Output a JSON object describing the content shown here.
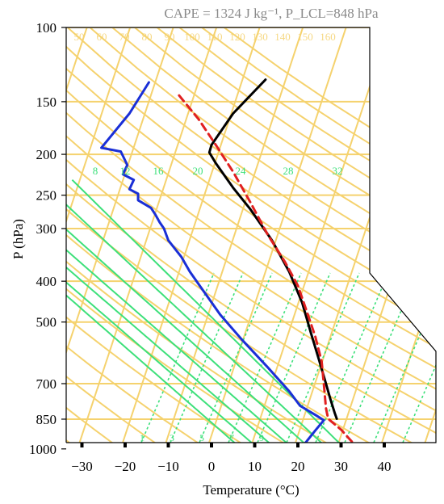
{
  "chart_data": {
    "type": "line",
    "title": "CAPE = 1324 J kg⁻¹,  P_LCL=848 hPa",
    "xlabel": "Temperature (°C)",
    "ylabel": "P (hPa)",
    "xlim": [
      -35,
      50
    ],
    "ylim": [
      1050,
      100
    ],
    "y_scale": "log",
    "x_ticks": [
      "−30",
      "−20",
      "−10",
      "0",
      "10",
      "20",
      "30",
      "40"
    ],
    "y_ticks": [
      "100",
      "150",
      "200",
      "250",
      "300",
      "400",
      "500",
      "700",
      "850",
      "1000"
    ],
    "mixing_ratio_labels": [
      "8",
      "12",
      "16",
      "20",
      "24",
      "28",
      "32"
    ],
    "dry_adiabat_labels": [
      "50",
      "60",
      "70",
      "80",
      "90",
      "100",
      "110",
      "120",
      "130",
      "140",
      "150",
      "160"
    ],
    "small_mixing_ratio_labels": [
      "1",
      "3",
      "5",
      "7",
      "9"
    ],
    "series": [
      {
        "color": "#1a2fd6",
        "style": "solid",
        "points": [
          [
            -14.5,
            135
          ],
          [
            -19,
            160
          ],
          [
            -25.5,
            193
          ],
          [
            -21,
            197
          ],
          [
            -19.5,
            212
          ],
          [
            -20.5,
            223
          ],
          [
            -18,
            230
          ],
          [
            -19,
            242
          ],
          [
            -17,
            248
          ],
          [
            -17,
            257
          ],
          [
            -14,
            268
          ],
          [
            -13,
            278
          ],
          [
            -12,
            290
          ],
          [
            -11,
            300
          ],
          [
            -10,
            320
          ],
          [
            -7,
            350
          ],
          [
            -5,
            380
          ],
          [
            -2,
            420
          ],
          [
            2,
            480
          ],
          [
            7,
            550
          ],
          [
            13,
            640
          ],
          [
            18,
            730
          ],
          [
            20.5,
            790
          ],
          [
            24,
            830
          ],
          [
            26,
            855
          ],
          [
            24,
            905
          ],
          [
            22,
            960
          ],
          [
            20.5,
            1000
          ]
        ]
      },
      {
        "color": "#000000",
        "style": "solid",
        "points": [
          [
            12.5,
            133
          ],
          [
            5,
            160
          ],
          [
            0,
            190
          ],
          [
            -0.5,
            198
          ],
          [
            1,
            210
          ],
          [
            5,
            240
          ],
          [
            9,
            270
          ],
          [
            14,
            320
          ],
          [
            18,
            380
          ],
          [
            21,
            450
          ],
          [
            23,
            530
          ],
          [
            25,
            620
          ],
          [
            26.5,
            700
          ],
          [
            27.5,
            760
          ],
          [
            28.5,
            820
          ],
          [
            29,
            848
          ]
        ]
      },
      {
        "color": "#e02020",
        "style": "dashed",
        "points": [
          [
            -7.5,
            145
          ],
          [
            -3,
            165
          ],
          [
            1,
            190
          ],
          [
            5,
            220
          ],
          [
            9,
            260
          ],
          [
            13,
            310
          ],
          [
            17,
            360
          ],
          [
            20,
            410
          ],
          [
            22,
            470
          ],
          [
            24,
            540
          ],
          [
            25.5,
            620
          ],
          [
            26,
            700
          ],
          [
            26.5,
            800
          ],
          [
            27,
            848
          ],
          [
            30,
            900
          ],
          [
            34,
            1000
          ]
        ]
      }
    ],
    "colors": {
      "isobars": "#f5d26e",
      "moist_adiabats": "#3de07a",
      "mixing_ratio_dotted": "#3de07a",
      "annotation_gray": "#8a8a8a"
    }
  }
}
